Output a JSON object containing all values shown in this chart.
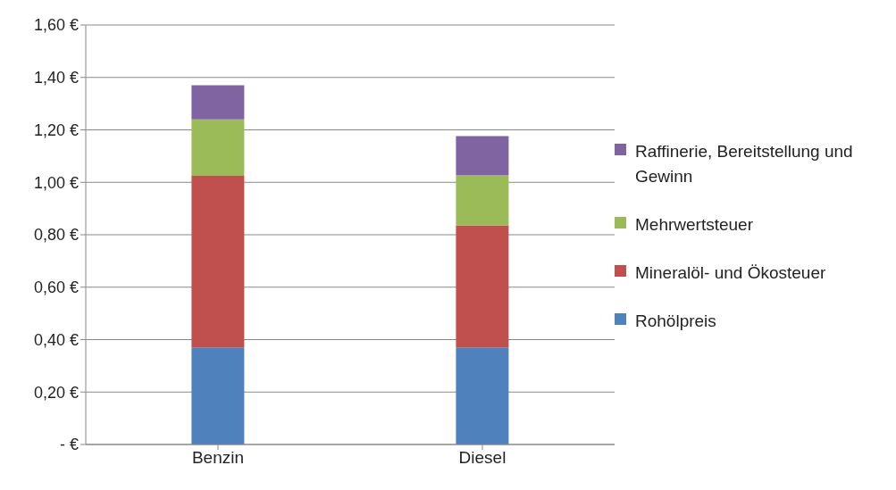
{
  "chart_data": {
    "type": "bar",
    "stacked": true,
    "categories": [
      "Benzin",
      "Diesel"
    ],
    "series": [
      {
        "name": "Rohölpreis",
        "color": "#4f81bd",
        "values": [
          0.37,
          0.37
        ]
      },
      {
        "name": "Mineralöl- und Ökosteuer",
        "color": "#c0504d",
        "values": [
          0.655,
          0.466
        ]
      },
      {
        "name": "Mehrwertsteuer",
        "color": "#9bbb59",
        "values": [
          0.215,
          0.19
        ]
      },
      {
        "name": "Raffinerie, Bereitstellung und Gewinn",
        "color": "#8064a2",
        "values": [
          0.13,
          0.15
        ]
      }
    ],
    "ylim": [
      0,
      1.6
    ],
    "yticks": [
      {
        "value": 0,
        "label": "-  €"
      },
      {
        "value": 0.2,
        "label": "0,20 €"
      },
      {
        "value": 0.4,
        "label": "0,40 €"
      },
      {
        "value": 0.6,
        "label": "0,60 €"
      },
      {
        "value": 0.8,
        "label": "0,80 €"
      },
      {
        "value": 1,
        "label": "1,00 €"
      },
      {
        "value": 1.2,
        "label": "1,20 €"
      },
      {
        "value": 1.4,
        "label": "1,40 €"
      },
      {
        "value": 1.6,
        "label": "1,60 €"
      }
    ],
    "grid": "y",
    "legend": "right"
  }
}
